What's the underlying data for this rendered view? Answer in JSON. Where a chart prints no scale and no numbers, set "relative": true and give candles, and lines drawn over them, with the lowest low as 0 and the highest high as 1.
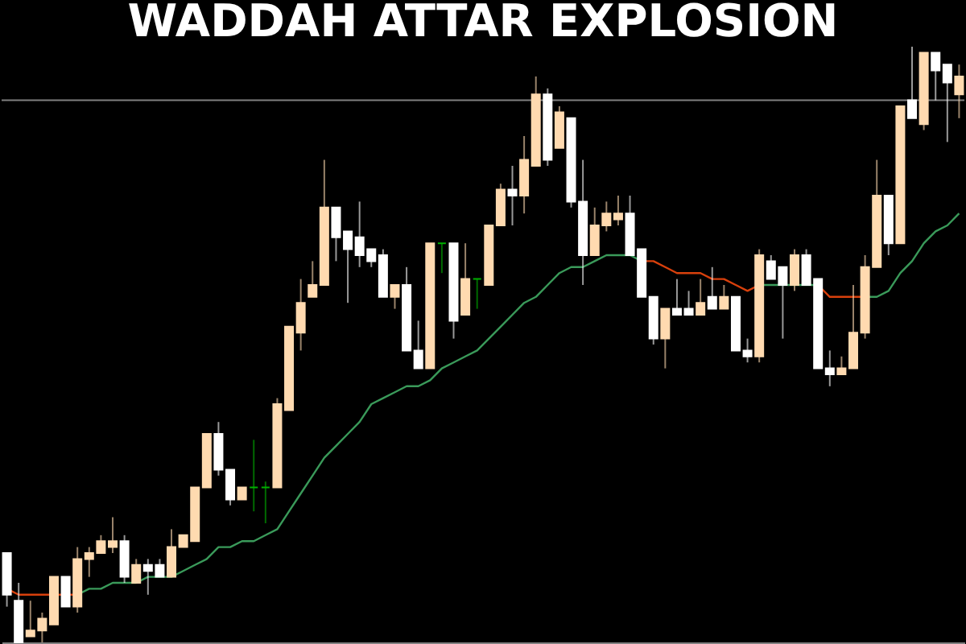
{
  "chart_data": {
    "type": "candlestick",
    "title": "WADDAH ATTAR EXPLOSION",
    "relative": true,
    "categories": [
      null,
      null,
      null,
      null,
      null,
      null,
      null,
      null,
      null,
      null,
      null,
      null,
      null,
      null,
      null,
      null,
      null,
      null,
      null,
      null,
      null,
      null,
      null,
      null,
      null,
      null,
      null,
      null,
      null,
      null,
      null,
      null,
      null,
      null,
      null,
      null,
      null,
      null,
      null,
      null,
      null,
      null,
      null,
      null,
      null,
      null,
      null,
      null,
      null,
      null,
      null,
      null,
      null,
      null,
      null,
      null,
      null,
      null,
      null,
      null,
      null,
      null,
      null,
      null,
      null,
      null,
      null,
      null,
      null,
      null,
      null,
      null,
      null,
      null,
      null,
      null,
      null,
      null,
      null,
      null,
      null,
      null
    ],
    "ohlc": [
      [
        0.15,
        0.15,
        0.06,
        0.08
      ],
      [
        0.07,
        0.1,
        0,
        0
      ],
      [
        0.01,
        0.07,
        0.01,
        0.02
      ],
      [
        0.02,
        0.05,
        0,
        0.04
      ],
      [
        0.03,
        0.11,
        0.03,
        0.11
      ],
      [
        0.11,
        0.11,
        0.06,
        0.06
      ],
      [
        0.06,
        0.16,
        0.05,
        0.14
      ],
      [
        0.14,
        0.16,
        0.11,
        0.15
      ],
      [
        0.15,
        0.18,
        0.15,
        0.17
      ],
      [
        0.16,
        0.21,
        0.15,
        0.17
      ],
      [
        0.17,
        0.18,
        0.1,
        0.11
      ],
      [
        0.1,
        0.14,
        0.1,
        0.13
      ],
      [
        0.13,
        0.14,
        0.08,
        0.12
      ],
      [
        0.13,
        0.14,
        0.11,
        0.11
      ],
      [
        0.11,
        0.19,
        0.11,
        0.16
      ],
      [
        0.16,
        0.18,
        0.16,
        0.18
      ],
      [
        0.17,
        0.26,
        0.17,
        0.26
      ],
      [
        0.26,
        0.35,
        0.26,
        0.35
      ],
      [
        0.35,
        0.37,
        0.28,
        0.29
      ],
      [
        0.29,
        0.29,
        0.23,
        0.24
      ],
      [
        0.24,
        0.26,
        0.24,
        0.26
      ],
      [
        0.26,
        0.34,
        0.22,
        0.26
      ],
      [
        0.26,
        0.27,
        0.2,
        0.26
      ],
      [
        0.26,
        0.41,
        0.26,
        0.4
      ],
      [
        0.39,
        0.53,
        0.39,
        0.53
      ],
      [
        0.52,
        0.61,
        0.49,
        0.57
      ],
      [
        0.58,
        0.64,
        0.58,
        0.6
      ],
      [
        0.6,
        0.81,
        0.6,
        0.73
      ],
      [
        0.73,
        0.73,
        0.64,
        0.68
      ],
      [
        0.69,
        0.69,
        0.57,
        0.66
      ],
      [
        0.68,
        0.74,
        0.63,
        0.65
      ],
      [
        0.66,
        0.66,
        0.63,
        0.64
      ],
      [
        0.65,
        0.66,
        0.58,
        0.58
      ],
      [
        0.58,
        0.6,
        0.56,
        0.6
      ],
      [
        0.6,
        0.63,
        0.49,
        0.49
      ],
      [
        0.49,
        0.54,
        0.46,
        0.46
      ],
      [
        0.46,
        0.67,
        0.46,
        0.67
      ],
      [
        0.67,
        0.67,
        0.62,
        0.67
      ],
      [
        0.67,
        0.67,
        0.51,
        0.54
      ],
      [
        0.55,
        0.67,
        0.55,
        0.61
      ],
      [
        0.61,
        0.61,
        0.56,
        0.61
      ],
      [
        0.6,
        0.7,
        0.6,
        0.7
      ],
      [
        0.7,
        0.77,
        0.7,
        0.76
      ],
      [
        0.76,
        0.8,
        0.7,
        0.75
      ],
      [
        0.75,
        0.85,
        0.72,
        0.81
      ],
      [
        0.8,
        0.95,
        0.8,
        0.92
      ],
      [
        0.92,
        0.93,
        0.8,
        0.81
      ],
      [
        0.83,
        0.9,
        0.83,
        0.89
      ],
      [
        0.88,
        0.88,
        0.73,
        0.74
      ],
      [
        0.74,
        0.81,
        0.6,
        0.65
      ],
      [
        0.65,
        0.73,
        0.65,
        0.7
      ],
      [
        0.7,
        0.74,
        0.69,
        0.72
      ],
      [
        0.71,
        0.75,
        0.7,
        0.72
      ],
      [
        0.72,
        0.75,
        0.65,
        0.65
      ],
      [
        0.66,
        0.66,
        0.58,
        0.58
      ],
      [
        0.58,
        0.58,
        0.5,
        0.51
      ],
      [
        0.51,
        0.56,
        0.46,
        0.56
      ],
      [
        0.56,
        0.61,
        0.55,
        0.55
      ],
      [
        0.56,
        0.59,
        0.55,
        0.55
      ],
      [
        0.55,
        0.61,
        0.55,
        0.57
      ],
      [
        0.58,
        0.63,
        0.56,
        0.56
      ],
      [
        0.56,
        0.6,
        0.56,
        0.58
      ],
      [
        0.58,
        0.58,
        0.49,
        0.49
      ],
      [
        0.49,
        0.51,
        0.47,
        0.48
      ],
      [
        0.48,
        0.66,
        0.47,
        0.65
      ],
      [
        0.64,
        0.65,
        0.61,
        0.61
      ],
      [
        0.63,
        0.63,
        0.51,
        0.6
      ],
      [
        0.6,
        0.66,
        0.59,
        0.65
      ],
      [
        0.65,
        0.66,
        0.6,
        0.6
      ],
      [
        0.61,
        0.61,
        0.46,
        0.46
      ],
      [
        0.46,
        0.49,
        0.43,
        0.45
      ],
      [
        0.45,
        0.48,
        0.45,
        0.46
      ],
      [
        0.46,
        0.6,
        0.46,
        0.52
      ],
      [
        0.52,
        0.65,
        0.51,
        0.63
      ],
      [
        0.63,
        0.81,
        0.63,
        0.75
      ],
      [
        0.75,
        0.75,
        0.65,
        0.67
      ],
      [
        0.67,
        0.9,
        0.67,
        0.9
      ],
      [
        0.91,
        1.0,
        0.88,
        0.88
      ],
      [
        0.87,
        0.99,
        0.86,
        0.99
      ],
      [
        0.99,
        0.99,
        0.91,
        0.96
      ],
      [
        0.97,
        0.97,
        0.84,
        0.94
      ],
      [
        0.92,
        0.97,
        0.88,
        0.95
      ]
    ],
    "colors": [
      "#ffffff",
      "#ffffff",
      "#ffdab0",
      "#ffdab0",
      "#ffdab0",
      "#ffffff",
      "#ffdab0",
      "#ffdab0",
      "#ffdab0",
      "#ffdab0",
      "#ffffff",
      "#ffdab0",
      "#ffffff",
      "#ffffff",
      "#ffdab0",
      "#ffdab0",
      "#ffdab0",
      "#ffdab0",
      "#ffffff",
      "#ffffff",
      "#ffdab0",
      "#00b000",
      "#00b000",
      "#ffdab0",
      "#ffdab0",
      "#ffdab0",
      "#ffdab0",
      "#ffdab0",
      "#ffffff",
      "#ffffff",
      "#ffffff",
      "#ffffff",
      "#ffffff",
      "#ffdab0",
      "#ffffff",
      "#ffffff",
      "#ffdab0",
      "#00b000",
      "#ffffff",
      "#ffdab0",
      "#00b000",
      "#ffdab0",
      "#ffdab0",
      "#ffffff",
      "#ffdab0",
      "#ffdab0",
      "#ffffff",
      "#ffdab0",
      "#ffffff",
      "#ffffff",
      "#ffdab0",
      "#ffdab0",
      "#ffdab0",
      "#ffffff",
      "#ffffff",
      "#ffffff",
      "#ffdab0",
      "#ffffff",
      "#ffffff",
      "#ffdab0",
      "#ffffff",
      "#ffdab0",
      "#ffffff",
      "#ffffff",
      "#ffdab0",
      "#ffffff",
      "#ffffff",
      "#ffdab0",
      "#ffffff",
      "#ffffff",
      "#ffffff",
      "#ffdab0",
      "#ffdab0",
      "#ffdab0",
      "#ffdab0",
      "#ffffff",
      "#ffdab0",
      "#ffffff",
      "#ffdab0",
      "#ffffff",
      "#ffffff",
      "#ffdab0"
    ],
    "series": [
      {
        "type": "line",
        "color": "#d8400c",
        "values": [
          0.09,
          0.08,
          0.08,
          0.08,
          0.08,
          0.08,
          0.08,
          null,
          null,
          null,
          null,
          null,
          null,
          null,
          null,
          null,
          null,
          null,
          null,
          null,
          null,
          null,
          null,
          null,
          null,
          null,
          null,
          null,
          null,
          null,
          null,
          null,
          null,
          null,
          null,
          null,
          null,
          null,
          null,
          null,
          null,
          null,
          null,
          null,
          null,
          null,
          null,
          null,
          null,
          null,
          null,
          null,
          null,
          null,
          0.64,
          0.64,
          0.63,
          0.62,
          0.62,
          0.62,
          0.61,
          0.61,
          0.6,
          0.59,
          0.6,
          null,
          null,
          null,
          null,
          0.6,
          0.58,
          0.58,
          0.58,
          0.58,
          null,
          null,
          null,
          null,
          null,
          null,
          null,
          null
        ]
      },
      {
        "type": "line",
        "color": "#3a9a5a",
        "values": [
          null,
          null,
          null,
          null,
          null,
          null,
          0.08,
          0.09,
          0.09,
          0.1,
          0.1,
          0.1,
          0.11,
          0.11,
          0.11,
          0.12,
          0.13,
          0.14,
          0.16,
          0.16,
          0.17,
          0.17,
          0.18,
          0.19,
          0.22,
          0.25,
          0.28,
          0.31,
          0.33,
          0.35,
          0.37,
          0.4,
          0.41,
          0.42,
          0.43,
          0.43,
          0.44,
          0.46,
          0.47,
          0.48,
          0.49,
          0.51,
          0.53,
          0.55,
          0.57,
          0.58,
          0.6,
          0.62,
          0.63,
          0.63,
          0.64,
          0.65,
          0.65,
          0.65,
          0.64,
          null,
          null,
          null,
          null,
          null,
          null,
          null,
          null,
          null,
          0.6,
          0.6,
          0.6,
          0.6,
          0.6,
          0.6,
          null,
          null,
          null,
          0.58,
          0.58,
          0.59,
          0.62,
          0.64,
          0.67,
          0.69,
          0.7,
          0.72
        ]
      }
    ],
    "ref_lines": [
      {
        "axis": "y",
        "value": 0.91,
        "color": "#808080"
      }
    ],
    "grid": false
  }
}
